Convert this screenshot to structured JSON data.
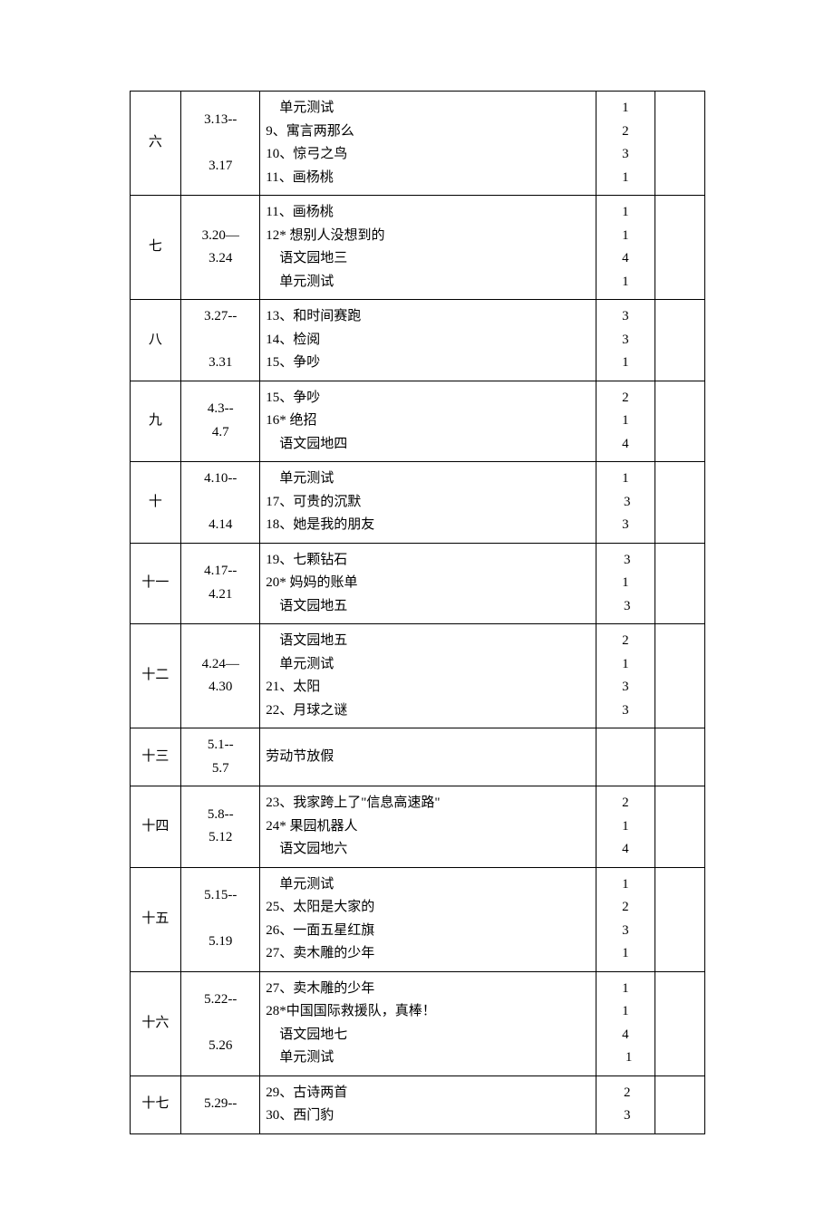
{
  "table": {
    "columns": {
      "week_width": 52,
      "date_width": 80,
      "content_width": 340,
      "hours_width": 60,
      "note_width": 50
    },
    "font_size": 15,
    "line_height": 1.7,
    "border_color": "#000000",
    "background_color": "#ffffff",
    "text_color": "#000000",
    "rows": [
      {
        "week": "六",
        "date": "3.13--\n\n3.17",
        "content": "    单元测试\n9、寓言两那么\n10、惊弓之鸟\n11、画杨桃",
        "hours": "1\n2\n3\n1",
        "note": ""
      },
      {
        "week": "七",
        "date": "3.20—\n3.24",
        "content": "11、画杨桃\n12* 想别人没想到的\n    语文园地三\n    单元测试",
        "hours": "1\n1\n4\n1",
        "note": ""
      },
      {
        "week": "八",
        "date": "3.27--\n\n3.31",
        "content": "13、和时间赛跑\n14、检阅\n15、争吵",
        "hours": "3\n3\n1",
        "note": ""
      },
      {
        "week": "九",
        "date": "4.3--\n4.7",
        "content": "15、争吵\n16* 绝招\n    语文园地四",
        "hours": "2\n1\n4",
        "note": ""
      },
      {
        "week": "十",
        "date": "4.10--\n\n4.14",
        "content": "    单元测试\n17、可贵的沉默\n18、她是我的朋友",
        "hours": "1\n 3\n3",
        "note": ""
      },
      {
        "week": "十一",
        "date": "4.17--\n4.21",
        "content": "19、七颗钻石\n20* 妈妈的账单\n    语文园地五",
        "hours": " 3\n1\n 3",
        "note": ""
      },
      {
        "week": "十二",
        "date": "4.24—\n4.30",
        "content": "    语文园地五\n    单元测试\n21、太阳\n22、月球之谜",
        "hours": "2\n1\n3\n3",
        "note": ""
      },
      {
        "week": "十三",
        "date": "5.1--\n5.7",
        "content": "劳动节放假",
        "hours": "",
        "note": ""
      },
      {
        "week": "十四",
        "date": "5.8--\n5.12",
        "content": "23、我家跨上了\"信息高速路\"\n24* 果园机器人\n    语文园地六",
        "hours": "2\n1\n4",
        "note": ""
      },
      {
        "week": "十五",
        "date": "5.15--\n\n5.19",
        "content": "    单元测试\n25、太阳是大家的\n26、一面五星红旗\n27、卖木雕的少年",
        "hours": "1\n2\n3\n1",
        "note": ""
      },
      {
        "week": "十六",
        "date": "5.22--\n\n5.26",
        "content": "27、卖木雕的少年\n28*中国国际救援队，真棒！\n    语文园地七\n    单元测试",
        "hours": "1\n1\n4\n  1",
        "note": ""
      },
      {
        "week": "十七",
        "date": "5.29--",
        "content": "29、古诗两首\n30、西门豹",
        "hours": " 2\n 3",
        "note": ""
      }
    ]
  }
}
